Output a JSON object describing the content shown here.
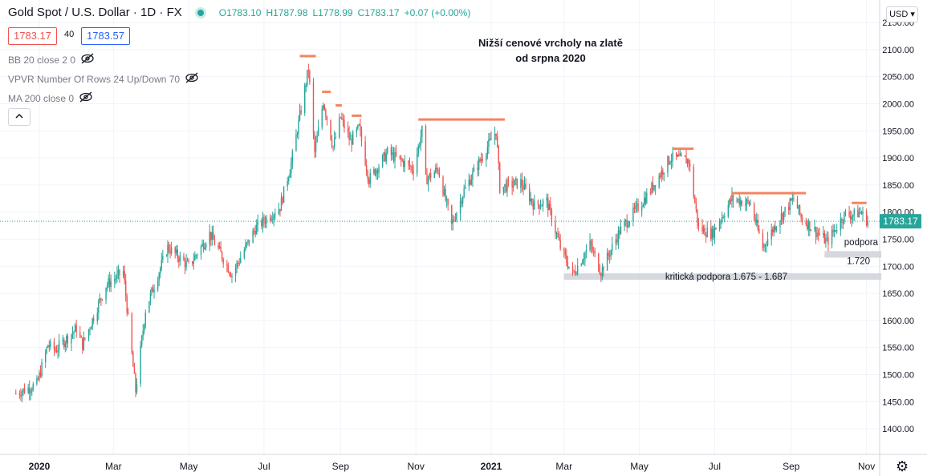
{
  "header": {
    "title": "Gold Spot / U.S. Dollar · 1D · FX",
    "ohlc": {
      "open": "O1783.10",
      "high": "H1787.98",
      "low": "L1778.99",
      "close": "C1783.17",
      "change": "+0.07 (+0.00%)"
    }
  },
  "price_boxes": {
    "bid": "1783.17",
    "spread": "40",
    "ask": "1783.57"
  },
  "indicators": [
    {
      "label": "BB 20 close 2 0"
    },
    {
      "label": "VPVR Number Of Rows 24 Up/Down 70"
    },
    {
      "label": "MA 200 close 0"
    }
  ],
  "currency_button": "USD",
  "colors": {
    "up": "#26a69a",
    "down": "#ef5350",
    "resistance": "#f4845f",
    "support_band": "#d1d4dc",
    "last_price": "#26a69a"
  },
  "chart_data": {
    "type": "candlestick",
    "title": "Nižší cenové vrcholy na zlatě od srpna 2020",
    "title_lines": [
      "Nižší cenové vrcholy na zlatě",
      "od srpna 2020"
    ],
    "y_ticks": [
      "2150.00",
      "2100.00",
      "2050.00",
      "2000.00",
      "1950.00",
      "1900.00",
      "1850.00",
      "1800.00",
      "1750.00",
      "1700.00",
      "1650.00",
      "1600.00",
      "1550.00",
      "1500.00",
      "1450.00",
      "1400.00"
    ],
    "x_ticks": [
      "2020",
      "Mar",
      "May",
      "Jul",
      "Sep",
      "Nov",
      "2021",
      "Mar",
      "May",
      "Jul",
      "Sep",
      "Nov"
    ],
    "ylim": [
      1350,
      2170
    ],
    "last_price": "1783.17",
    "annotations": {
      "critical_support": "kritická podpora 1.675 - 1.687",
      "support_label": "podpora",
      "support_value": "1.720"
    },
    "resistance_levels": [
      {
        "from": "2020-07-30",
        "to": "2020-08-12",
        "value": 2088
      },
      {
        "from": "2020-08-17",
        "to": "2020-08-24",
        "value": 2022
      },
      {
        "from": "2020-08-28",
        "to": "2020-09-02",
        "value": 1997
      },
      {
        "from": "2020-09-10",
        "to": "2020-09-18",
        "value": 1978
      },
      {
        "from": "2020-11-03",
        "to": "2021-01-12",
        "value": 1971
      },
      {
        "from": "2021-05-28",
        "to": "2021-06-14",
        "value": 1917
      },
      {
        "from": "2021-07-15",
        "to": "2021-09-13",
        "value": 1835
      },
      {
        "from": "2021-10-20",
        "to": "2021-11-01",
        "value": 1817
      }
    ],
    "support_bands": [
      {
        "from": "2021-03-01",
        "to": "2021-11-13",
        "low": 1675,
        "high": 1687
      },
      {
        "from": "2021-09-28",
        "to": "2021-11-13",
        "low": 1716,
        "high": 1728
      }
    ],
    "price_path": [
      {
        "date": "2019-12-13",
        "price": 1465
      },
      {
        "date": "2019-12-30",
        "price": 1482
      },
      {
        "date": "2020-01-08",
        "price": 1555
      },
      {
        "date": "2020-01-14",
        "price": 1545
      },
      {
        "date": "2020-01-31",
        "price": 1585
      },
      {
        "date": "2020-02-05",
        "price": 1555
      },
      {
        "date": "2020-02-24",
        "price": 1665
      },
      {
        "date": "2020-03-09",
        "price": 1690
      },
      {
        "date": "2020-03-19",
        "price": 1470
      },
      {
        "date": "2020-03-27",
        "price": 1620
      },
      {
        "date": "2020-04-14",
        "price": 1735
      },
      {
        "date": "2020-05-01",
        "price": 1700
      },
      {
        "date": "2020-05-18",
        "price": 1760
      },
      {
        "date": "2020-06-05",
        "price": 1685
      },
      {
        "date": "2020-06-24",
        "price": 1770
      },
      {
        "date": "2020-07-14",
        "price": 1810
      },
      {
        "date": "2020-07-23",
        "price": 1890
      },
      {
        "date": "2020-08-06",
        "price": 2065
      },
      {
        "date": "2020-08-11",
        "price": 1910
      },
      {
        "date": "2020-08-18",
        "price": 2005
      },
      {
        "date": "2020-08-26",
        "price": 1920
      },
      {
        "date": "2020-09-01",
        "price": 1975
      },
      {
        "date": "2020-09-09",
        "price": 1930
      },
      {
        "date": "2020-09-16",
        "price": 1955
      },
      {
        "date": "2020-09-24",
        "price": 1860
      },
      {
        "date": "2020-10-09",
        "price": 1910
      },
      {
        "date": "2020-10-30",
        "price": 1880
      },
      {
        "date": "2020-11-06",
        "price": 1950
      },
      {
        "date": "2020-11-09",
        "price": 1860
      },
      {
        "date": "2020-11-19",
        "price": 1880
      },
      {
        "date": "2020-11-30",
        "price": 1775
      },
      {
        "date": "2020-12-10",
        "price": 1840
      },
      {
        "date": "2021-01-05",
        "price": 1950
      },
      {
        "date": "2021-01-08",
        "price": 1845
      },
      {
        "date": "2021-01-25",
        "price": 1855
      },
      {
        "date": "2021-02-05",
        "price": 1812
      },
      {
        "date": "2021-02-15",
        "price": 1820
      },
      {
        "date": "2021-02-26",
        "price": 1735
      },
      {
        "date": "2021-03-08",
        "price": 1685
      },
      {
        "date": "2021-03-22",
        "price": 1740
      },
      {
        "date": "2021-03-31",
        "price": 1690
      },
      {
        "date": "2021-04-15",
        "price": 1765
      },
      {
        "date": "2021-05-07",
        "price": 1830
      },
      {
        "date": "2021-05-26",
        "price": 1900
      },
      {
        "date": "2021-06-10",
        "price": 1895
      },
      {
        "date": "2021-06-18",
        "price": 1770
      },
      {
        "date": "2021-06-29",
        "price": 1760
      },
      {
        "date": "2021-07-15",
        "price": 1825
      },
      {
        "date": "2021-07-30",
        "price": 1815
      },
      {
        "date": "2021-08-09",
        "price": 1735
      },
      {
        "date": "2021-08-20",
        "price": 1780
      },
      {
        "date": "2021-09-03",
        "price": 1825
      },
      {
        "date": "2021-09-09",
        "price": 1790
      },
      {
        "date": "2021-09-30",
        "price": 1745
      },
      {
        "date": "2021-10-14",
        "price": 1795
      },
      {
        "date": "2021-10-22",
        "price": 1795
      },
      {
        "date": "2021-10-27",
        "price": 1800
      },
      {
        "date": "2021-11-02",
        "price": 1783
      }
    ],
    "grid": true
  }
}
